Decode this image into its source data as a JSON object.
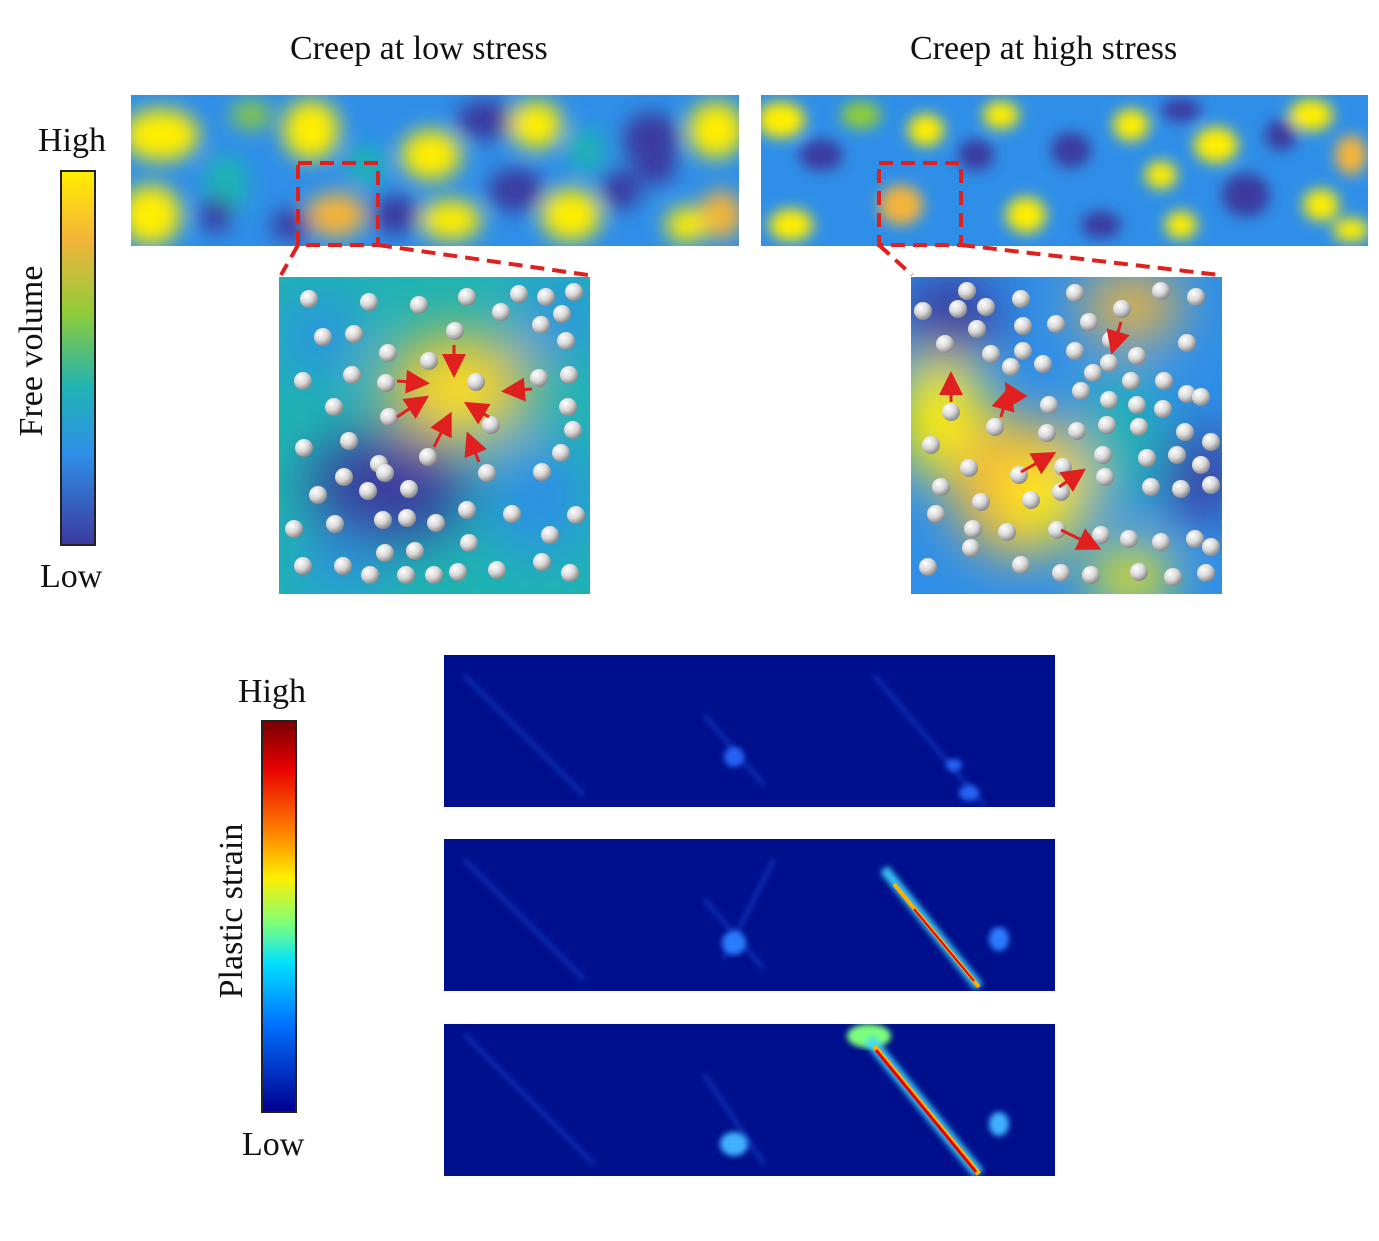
{
  "free_volume": {
    "left_title": "Creep at low stress",
    "right_title": "Creep at high stress",
    "colorbar": {
      "label": "Free volume",
      "high_label": "High",
      "low_label": "Low",
      "colors": [
        "#ffee00",
        "#f5b840",
        "#8fcc3a",
        "#1fb3b3",
        "#2f8fe8",
        "#3b3b9e"
      ]
    },
    "zoom_box_color": "#e0201e",
    "arrow_color": "#e0201e"
  },
  "plastic_strain": {
    "colorbar": {
      "label": "Plastic strain",
      "high_label": "High",
      "low_label": "Low",
      "colors": [
        "#7a0000",
        "#e80000",
        "#ff8000",
        "#ffee00",
        "#7cff7c",
        "#00e0ff",
        "#0070ff",
        "#000090"
      ]
    },
    "panels": 3
  }
}
